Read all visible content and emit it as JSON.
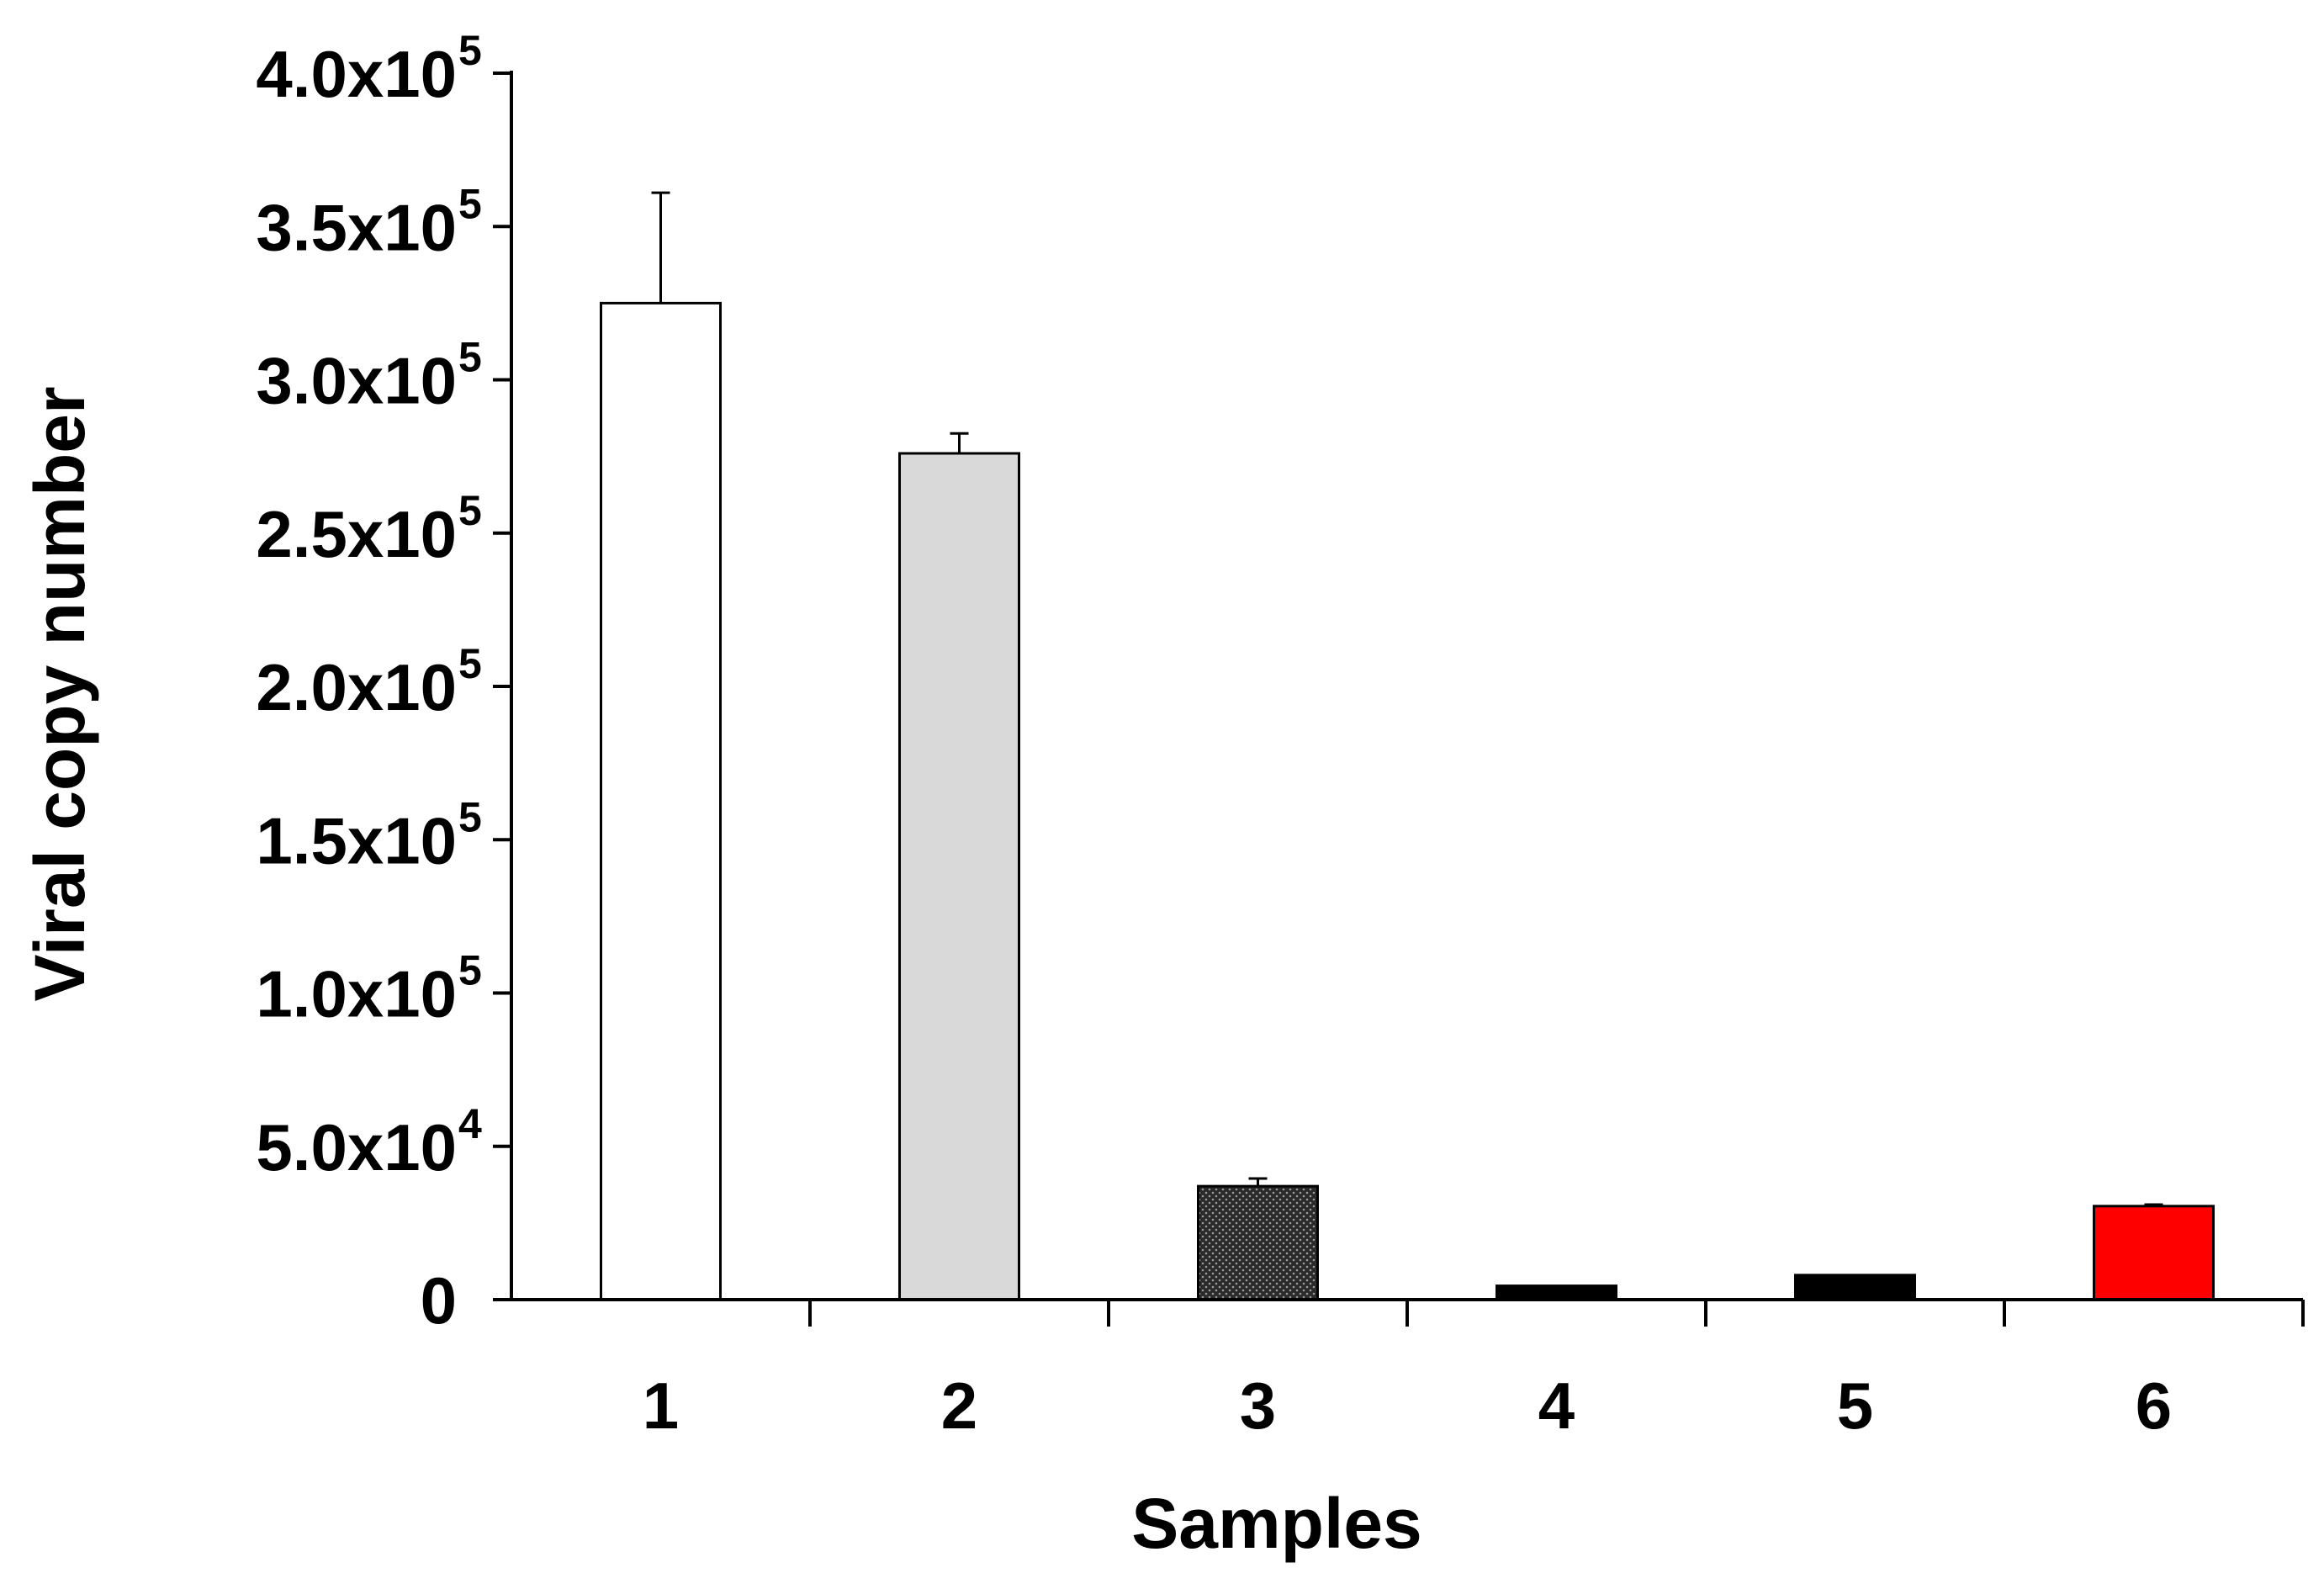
{
  "chart_data": {
    "type": "bar",
    "title": "",
    "xlabel": "Samples",
    "ylabel": "Viral copy number",
    "categories": [
      "1",
      "2",
      "3",
      "4",
      "5",
      "6"
    ],
    "values": [
      325000,
      276000,
      37000,
      4500,
      8000,
      30500
    ],
    "error_upper": [
      36000,
      6500,
      2500,
      0,
      0,
      500
    ],
    "colors": [
      "#ffffff",
      "#d9d9d9",
      "#3a3a3a",
      "#000000",
      "#000000",
      "#ff0000"
    ],
    "patterns": [
      "none",
      "none",
      "dots",
      "none",
      "none",
      "none"
    ],
    "ylim": [
      0,
      400000
    ],
    "yticks": [
      {
        "value": 0,
        "base": "0",
        "exp": ""
      },
      {
        "value": 50000,
        "base": "5.0x10",
        "exp": "4"
      },
      {
        "value": 100000,
        "base": "1.0x10",
        "exp": "5"
      },
      {
        "value": 150000,
        "base": "1.5x10",
        "exp": "5"
      },
      {
        "value": 200000,
        "base": "2.0x10",
        "exp": "5"
      },
      {
        "value": 250000,
        "base": "2.5x10",
        "exp": "5"
      },
      {
        "value": 300000,
        "base": "3.0x10",
        "exp": "5"
      },
      {
        "value": 350000,
        "base": "3.5x10",
        "exp": "5"
      },
      {
        "value": 400000,
        "base": "4.0x10",
        "exp": "5"
      }
    ],
    "grid": false,
    "legend": "none"
  }
}
